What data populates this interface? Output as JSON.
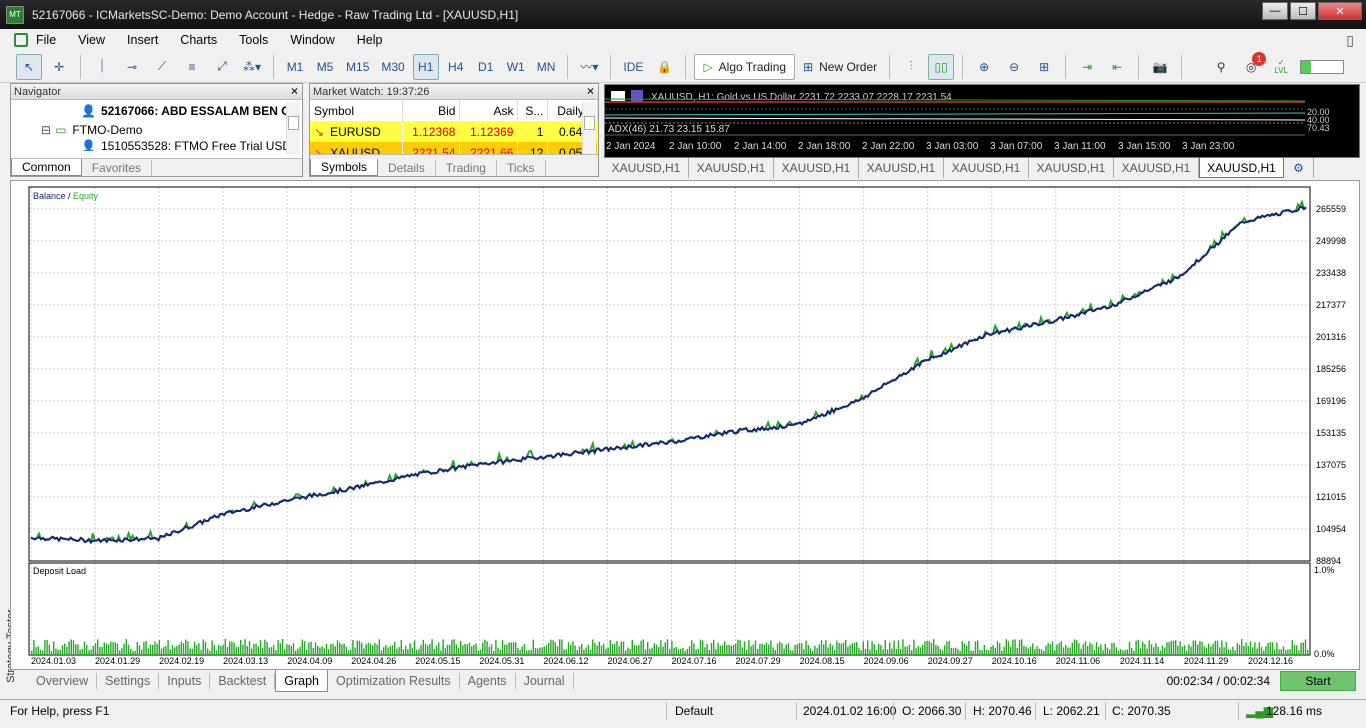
{
  "window": {
    "title": "52167066 - ICMarketsSC-Demo: Demo Account - Hedge - Raw Trading Ltd - [XAUUSD,H1]",
    "min": "—",
    "max": "☐",
    "close": "✕"
  },
  "menu": [
    "File",
    "View",
    "Insert",
    "Charts",
    "Tools",
    "Window",
    "Help"
  ],
  "toolbar": {
    "timeframes": [
      "M1",
      "M5",
      "M15",
      "M30",
      "H1",
      "H4",
      "D1",
      "W1",
      "MN"
    ],
    "active_timeframe": "H1",
    "ide": "IDE",
    "algo_trading": "Algo Trading",
    "new_order": "New Order",
    "notification_count": "1",
    "lvl_label": "LVL"
  },
  "navigator": {
    "title": "Navigator",
    "items": [
      "52167066: ABD ESSALAM BEN O",
      "FTMO-Demo",
      "1510553528: FTMO Free Trial USD"
    ],
    "tabs": [
      "Common",
      "Favorites"
    ]
  },
  "market_watch": {
    "title": "Market Watch: 19:37:26",
    "columns": [
      "Symbol",
      "Bid",
      "Ask",
      "S...",
      "Daily..."
    ],
    "rows": [
      {
        "symbol": "EURUSD",
        "bid": "1.12368",
        "ask": "1.12369",
        "spread": "1",
        "daily": "0.64%"
      },
      {
        "symbol": "XAUUSD",
        "bid": "2221.54",
        "ask": "2221.66",
        "spread": "12",
        "daily": "0.05%"
      }
    ],
    "tabs": [
      "Symbols",
      "Details",
      "Trading",
      "Ticks"
    ]
  },
  "mini_chart": {
    "header": "XAUUSD, H1:  Gold vs US Dollar  2231.72 2233.07 2228.17 2231.54",
    "indicator": "ADX(46) 21.73 23.15 15.87",
    "right_labels": [
      "20.00",
      "40.00",
      "70.43"
    ],
    "dates": [
      "2 Jan 2024",
      "2 Jan 10:00",
      "2 Jan 14:00",
      "2 Jan 18:00",
      "2 Jan 22:00",
      "3 Jan 03:00",
      "3 Jan 07:00",
      "3 Jan 11:00",
      "3 Jan 15:00",
      "3 Jan 23:00"
    ]
  },
  "chart_tabs": [
    "XAUUSD,H1",
    "XAUUSD,H1",
    "XAUUSD,H1",
    "XAUUSD,H1",
    "XAUUSD,H1",
    "XAUUSD,H1",
    "XAUUSD,H1",
    "XAUUSD,H1"
  ],
  "graph": {
    "legend_balance": "Balance",
    "legend_sep": " / ",
    "legend_equity": "Equity",
    "y_labels": [
      "265559",
      "249998",
      "233438",
      "217377",
      "201316",
      "185256",
      "169196",
      "153135",
      "137075",
      "121015",
      "104954",
      "88894"
    ],
    "deposit_title": "Deposit Load",
    "deposit_max": "1.0%",
    "deposit_min": "0.0%",
    "x_labels": [
      "2024.01.03",
      "2024.01.29",
      "2024.02.19",
      "2024.03.13",
      "2024.04.09",
      "2024.04.26",
      "2024.05.15",
      "2024.05.31",
      "2024.06.12",
      "2024.06.27",
      "2024.07.16",
      "2024.07.29",
      "2024.08.15",
      "2024.09.06",
      "2024.09.27",
      "2024.10.16",
      "2024.11.06",
      "2024.11.14",
      "2024.11.29",
      "2024.12.16"
    ]
  },
  "chart_data": {
    "type": "line",
    "series": [
      {
        "name": "Balance",
        "color": "#1a237e"
      },
      {
        "name": "Equity",
        "color": "#22aa22"
      }
    ],
    "x": [
      "2024.01.03",
      "2024.01.29",
      "2024.02.19",
      "2024.03.13",
      "2024.04.09",
      "2024.04.26",
      "2024.05.15",
      "2024.05.31",
      "2024.06.12",
      "2024.06.27",
      "2024.07.16",
      "2024.07.29",
      "2024.08.15",
      "2024.09.06",
      "2024.09.27",
      "2024.10.16",
      "2024.11.06",
      "2024.11.14",
      "2024.11.29",
      "2024.12.16",
      "2024.12.31"
    ],
    "balance": [
      100000,
      98500,
      99500,
      111000,
      117500,
      123000,
      129500,
      134500,
      138000,
      141500,
      145000,
      150000,
      153000,
      165000,
      183000,
      196000,
      202000,
      210000,
      223000,
      249000,
      256000
    ],
    "ylim": [
      88894,
      265559
    ]
  },
  "strategy_tester": {
    "label": "Strategy Tester",
    "tabs": [
      "Overview",
      "Settings",
      "Inputs",
      "Backtest",
      "Graph",
      "Optimization Results",
      "Agents",
      "Journal"
    ],
    "active_tab": "Graph",
    "timer": "00:02:34 / 00:02:34",
    "start": "Start"
  },
  "status": {
    "help": "For Help, press F1",
    "profile": "Default",
    "datetime": "2024.01.02 16:00",
    "open": "O: 2066.30",
    "high": "H: 2070.46",
    "low": "L: 2062.21",
    "close": "C: 2070.35",
    "ping": "128.16 ms"
  }
}
